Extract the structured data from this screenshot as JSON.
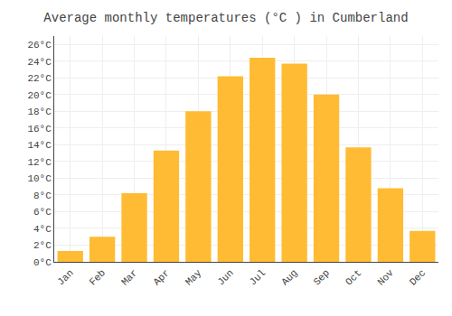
{
  "chart_data": {
    "type": "bar",
    "title": "Average monthly temperatures (°C ) in Cumberland",
    "categories": [
      "Jan",
      "Feb",
      "Mar",
      "Apr",
      "May",
      "Jun",
      "Jul",
      "Aug",
      "Sep",
      "Oct",
      "Nov",
      "Dec"
    ],
    "values": [
      1.3,
      3.0,
      8.2,
      13.3,
      18.0,
      22.2,
      24.4,
      23.7,
      20.0,
      13.7,
      8.8,
      3.7
    ],
    "color": "#FFBB33",
    "ylim": [
      0,
      27
    ],
    "yticks": [
      {
        "value": 0,
        "label": "0°C"
      },
      {
        "value": 2,
        "label": "2°C"
      },
      {
        "value": 4,
        "label": "4°C"
      },
      {
        "value": 6,
        "label": "6°C"
      },
      {
        "value": 8,
        "label": "8°C"
      },
      {
        "value": 10,
        "label": "10°C"
      },
      {
        "value": 12,
        "label": "12°C"
      },
      {
        "value": 14,
        "label": "14°C"
      },
      {
        "value": 16,
        "label": "16°C"
      },
      {
        "value": 18,
        "label": "18°C"
      },
      {
        "value": 20,
        "label": "20°C"
      },
      {
        "value": 22,
        "label": "22°C"
      },
      {
        "value": 24,
        "label": "24°C"
      },
      {
        "value": 26,
        "label": "26°C"
      }
    ],
    "grid": true
  }
}
